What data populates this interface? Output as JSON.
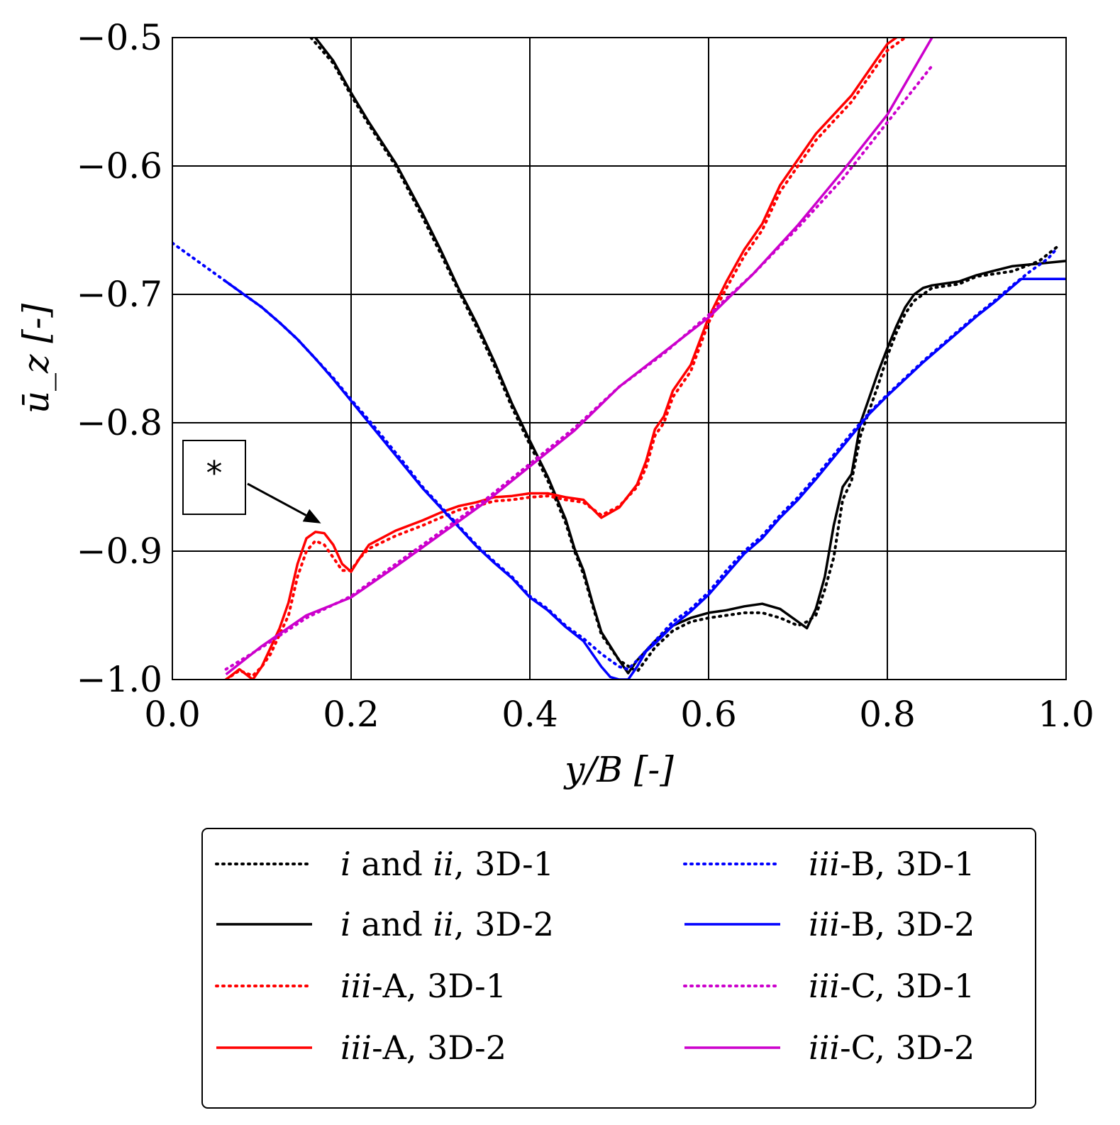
{
  "chart_data": {
    "type": "line",
    "xlabel": "y/B [-]",
    "ylabel": "ū_z [-]",
    "xlim": [
      0.0,
      1.0
    ],
    "ylim": [
      -1.0,
      -0.5
    ],
    "grid": true,
    "x_ticks": [
      "0.0",
      "0.2",
      "0.4",
      "0.6",
      "0.8",
      "1.0"
    ],
    "y_ticks": [
      "−1.0",
      "−0.9",
      "−0.8",
      "−0.7",
      "−0.6",
      "−0.5"
    ],
    "legend_position": "below-plot",
    "annotation": {
      "text": "*",
      "points_to": {
        "x": 0.16,
        "y": -0.885
      }
    },
    "series": [
      {
        "name": "i and ii, 3D-1",
        "color": "#000000",
        "style": "dotted",
        "x": [
          0.155,
          0.18,
          0.2,
          0.22,
          0.25,
          0.28,
          0.3,
          0.32,
          0.34,
          0.36,
          0.38,
          0.4,
          0.42,
          0.44,
          0.45,
          0.46,
          0.47,
          0.48,
          0.5,
          0.52,
          0.54,
          0.56,
          0.58,
          0.6,
          0.62,
          0.64,
          0.66,
          0.68,
          0.7,
          0.71,
          0.72,
          0.73,
          0.74,
          0.75,
          0.76,
          0.77,
          0.78,
          0.79,
          0.8,
          0.81,
          0.82,
          0.83,
          0.84,
          0.85,
          0.88,
          0.9,
          0.94,
          0.97,
          0.99
        ],
        "y": [
          -0.5,
          -0.52,
          -0.545,
          -0.568,
          -0.6,
          -0.64,
          -0.668,
          -0.697,
          -0.725,
          -0.755,
          -0.788,
          -0.817,
          -0.845,
          -0.878,
          -0.9,
          -0.918,
          -0.942,
          -0.965,
          -0.985,
          -0.994,
          -0.975,
          -0.962,
          -0.955,
          -0.952,
          -0.95,
          -0.948,
          -0.948,
          -0.952,
          -0.958,
          -0.955,
          -0.95,
          -0.93,
          -0.905,
          -0.86,
          -0.845,
          -0.81,
          -0.79,
          -0.77,
          -0.748,
          -0.73,
          -0.715,
          -0.705,
          -0.7,
          -0.695,
          -0.692,
          -0.686,
          -0.682,
          -0.674,
          -0.663
        ]
      },
      {
        "name": "i and ii, 3D-2",
        "color": "#000000",
        "style": "solid",
        "x": [
          0.16,
          0.18,
          0.2,
          0.22,
          0.25,
          0.28,
          0.3,
          0.32,
          0.34,
          0.36,
          0.38,
          0.4,
          0.42,
          0.44,
          0.45,
          0.46,
          0.47,
          0.48,
          0.5,
          0.51,
          0.52,
          0.54,
          0.56,
          0.58,
          0.6,
          0.62,
          0.64,
          0.66,
          0.68,
          0.7,
          0.71,
          0.72,
          0.73,
          0.74,
          0.75,
          0.76,
          0.77,
          0.78,
          0.79,
          0.8,
          0.81,
          0.82,
          0.83,
          0.84,
          0.85,
          0.88,
          0.9,
          0.94,
          1.0
        ],
        "y": [
          -0.5,
          -0.518,
          -0.543,
          -0.566,
          -0.598,
          -0.637,
          -0.665,
          -0.695,
          -0.722,
          -0.752,
          -0.785,
          -0.814,
          -0.842,
          -0.875,
          -0.898,
          -0.915,
          -0.94,
          -0.963,
          -0.985,
          -0.995,
          -0.985,
          -0.97,
          -0.958,
          -0.952,
          -0.948,
          -0.946,
          -0.943,
          -0.941,
          -0.945,
          -0.955,
          -0.96,
          -0.945,
          -0.92,
          -0.88,
          -0.85,
          -0.84,
          -0.8,
          -0.78,
          -0.76,
          -0.742,
          -0.725,
          -0.71,
          -0.7,
          -0.695,
          -0.693,
          -0.69,
          -0.685,
          -0.678,
          -0.674
        ]
      },
      {
        "name": "iii-A, 3D-1",
        "color": "#ff0000",
        "style": "dotted",
        "x": [
          0.06,
          0.075,
          0.09,
          0.1,
          0.11,
          0.12,
          0.13,
          0.14,
          0.15,
          0.16,
          0.17,
          0.18,
          0.19,
          0.2,
          0.21,
          0.22,
          0.25,
          0.28,
          0.3,
          0.32,
          0.34,
          0.36,
          0.38,
          0.4,
          0.42,
          0.44,
          0.46,
          0.48,
          0.5,
          0.52,
          0.53,
          0.54,
          0.55,
          0.56,
          0.58,
          0.6,
          0.62,
          0.64,
          0.66,
          0.68,
          0.7,
          0.72,
          0.74,
          0.76,
          0.78,
          0.8,
          0.82,
          0.83
        ],
        "y": [
          -1.0,
          -0.993,
          -0.997,
          -0.99,
          -0.98,
          -0.965,
          -0.95,
          -0.92,
          -0.9,
          -0.892,
          -0.895,
          -0.905,
          -0.915,
          -0.915,
          -0.905,
          -0.898,
          -0.888,
          -0.88,
          -0.874,
          -0.868,
          -0.865,
          -0.861,
          -0.86,
          -0.858,
          -0.857,
          -0.86,
          -0.862,
          -0.872,
          -0.865,
          -0.85,
          -0.835,
          -0.81,
          -0.8,
          -0.78,
          -0.76,
          -0.722,
          -0.695,
          -0.67,
          -0.65,
          -0.62,
          -0.6,
          -0.58,
          -0.565,
          -0.55,
          -0.53,
          -0.51,
          -0.5,
          -0.495
        ]
      },
      {
        "name": "iii-A, 3D-2",
        "color": "#ff0000",
        "style": "solid",
        "x": [
          0.06,
          0.075,
          0.09,
          0.1,
          0.11,
          0.12,
          0.13,
          0.14,
          0.15,
          0.16,
          0.17,
          0.18,
          0.19,
          0.2,
          0.21,
          0.22,
          0.25,
          0.28,
          0.3,
          0.32,
          0.34,
          0.36,
          0.38,
          0.4,
          0.42,
          0.44,
          0.46,
          0.48,
          0.5,
          0.52,
          0.53,
          0.54,
          0.55,
          0.56,
          0.58,
          0.6,
          0.62,
          0.64,
          0.66,
          0.68,
          0.7,
          0.72,
          0.74,
          0.76,
          0.78,
          0.8,
          0.82,
          0.83
        ],
        "y": [
          -1.0,
          -0.992,
          -1.0,
          -0.99,
          -0.975,
          -0.96,
          -0.94,
          -0.91,
          -0.89,
          -0.885,
          -0.886,
          -0.895,
          -0.91,
          -0.916,
          -0.905,
          -0.895,
          -0.884,
          -0.876,
          -0.87,
          -0.865,
          -0.862,
          -0.858,
          -0.857,
          -0.855,
          -0.855,
          -0.858,
          -0.86,
          -0.874,
          -0.866,
          -0.848,
          -0.83,
          -0.805,
          -0.795,
          -0.775,
          -0.755,
          -0.718,
          -0.69,
          -0.665,
          -0.645,
          -0.615,
          -0.595,
          -0.575,
          -0.56,
          -0.545,
          -0.525,
          -0.505,
          -0.495,
          -0.49
        ]
      },
      {
        "name": "iii-B, 3D-1",
        "color": "#0000ff",
        "style": "dotted",
        "x": [
          0.0,
          0.02,
          0.04,
          0.06,
          0.08,
          0.1,
          0.12,
          0.14,
          0.16,
          0.18,
          0.2,
          0.22,
          0.24,
          0.26,
          0.28,
          0.3,
          0.32,
          0.34,
          0.36,
          0.38,
          0.4,
          0.42,
          0.44,
          0.46,
          0.48,
          0.5,
          0.51,
          0.52,
          0.54,
          0.56,
          0.58,
          0.6,
          0.62,
          0.64,
          0.66,
          0.68,
          0.7,
          0.72,
          0.74,
          0.76,
          0.78,
          0.8,
          0.82,
          0.84,
          0.86,
          0.88,
          0.9,
          0.92,
          0.94,
          0.96,
          0.98,
          0.99
        ],
        "y": [
          -0.66,
          -0.67,
          -0.68,
          -0.69,
          -0.7,
          -0.71,
          -0.722,
          -0.735,
          -0.75,
          -0.765,
          -0.782,
          -0.798,
          -0.815,
          -0.832,
          -0.85,
          -0.865,
          -0.88,
          -0.895,
          -0.908,
          -0.92,
          -0.935,
          -0.945,
          -0.958,
          -0.968,
          -0.98,
          -0.99,
          -0.992,
          -0.985,
          -0.97,
          -0.955,
          -0.945,
          -0.932,
          -0.915,
          -0.9,
          -0.888,
          -0.872,
          -0.858,
          -0.842,
          -0.825,
          -0.808,
          -0.792,
          -0.778,
          -0.765,
          -0.752,
          -0.74,
          -0.728,
          -0.716,
          -0.705,
          -0.693,
          -0.682,
          -0.672,
          -0.664
        ]
      },
      {
        "name": "iii-B, 3D-2",
        "color": "#0000ff",
        "style": "solid",
        "x": [
          0.06,
          0.08,
          0.1,
          0.12,
          0.14,
          0.16,
          0.18,
          0.2,
          0.22,
          0.24,
          0.26,
          0.28,
          0.3,
          0.32,
          0.34,
          0.36,
          0.38,
          0.4,
          0.42,
          0.44,
          0.46,
          0.48,
          0.49,
          0.5,
          0.51,
          0.52,
          0.53,
          0.54,
          0.56,
          0.58,
          0.6,
          0.62,
          0.64,
          0.66,
          0.68,
          0.7,
          0.72,
          0.74,
          0.76,
          0.78,
          0.8,
          0.82,
          0.84,
          0.86,
          0.88,
          0.9,
          0.92,
          0.94,
          0.95,
          1.0
        ],
        "y": [
          -0.69,
          -0.7,
          -0.71,
          -0.722,
          -0.735,
          -0.75,
          -0.766,
          -0.783,
          -0.8,
          -0.817,
          -0.834,
          -0.851,
          -0.866,
          -0.881,
          -0.896,
          -0.909,
          -0.921,
          -0.936,
          -0.946,
          -0.959,
          -0.97,
          -0.99,
          -0.998,
          -1.0,
          -1.0,
          -0.99,
          -0.978,
          -0.972,
          -0.958,
          -0.947,
          -0.934,
          -0.918,
          -0.902,
          -0.89,
          -0.874,
          -0.86,
          -0.844,
          -0.827,
          -0.81,
          -0.793,
          -0.779,
          -0.766,
          -0.753,
          -0.741,
          -0.729,
          -0.717,
          -0.706,
          -0.694,
          -0.688,
          -0.688
        ]
      },
      {
        "name": "iii-C, 3D-1",
        "color": "#cc00cc",
        "style": "dotted",
        "x": [
          0.06,
          0.1,
          0.15,
          0.2,
          0.25,
          0.3,
          0.35,
          0.4,
          0.45,
          0.5,
          0.55,
          0.6,
          0.65,
          0.7,
          0.75,
          0.8,
          0.85
        ],
        "y": [
          -0.992,
          -0.975,
          -0.952,
          -0.935,
          -0.91,
          -0.885,
          -0.86,
          -0.832,
          -0.804,
          -0.772,
          -0.746,
          -0.716,
          -0.684,
          -0.648,
          -0.61,
          -0.566,
          -0.522
        ]
      },
      {
        "name": "iii-C, 3D-2",
        "color": "#cc00cc",
        "style": "solid",
        "x": [
          0.06,
          0.1,
          0.15,
          0.2,
          0.25,
          0.3,
          0.35,
          0.4,
          0.45,
          0.5,
          0.55,
          0.6,
          0.65,
          0.7,
          0.75,
          0.8,
          0.85
        ],
        "y": [
          -0.996,
          -0.974,
          -0.95,
          -0.936,
          -0.912,
          -0.887,
          -0.862,
          -0.834,
          -0.806,
          -0.772,
          -0.745,
          -0.718,
          -0.684,
          -0.646,
          -0.604,
          -0.56,
          -0.5
        ]
      }
    ]
  }
}
